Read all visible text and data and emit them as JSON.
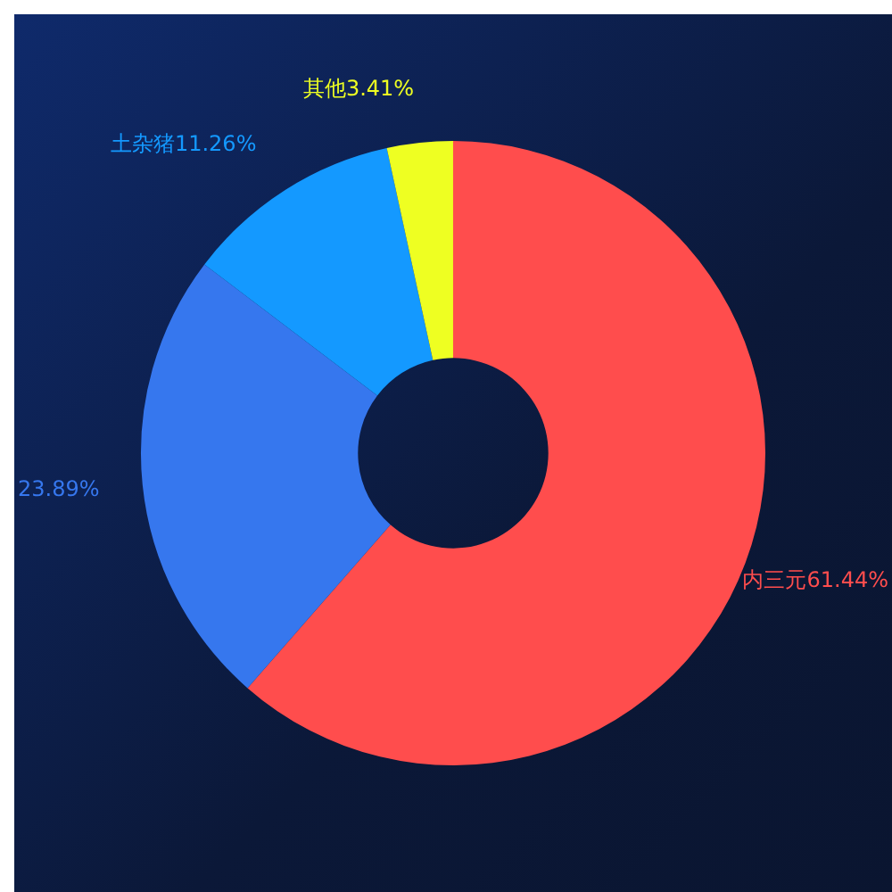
{
  "chart_data": {
    "type": "donut",
    "categories": [
      "内三元",
      null,
      "土杂猪",
      "其他"
    ],
    "values": [
      61.44,
      23.89,
      11.26,
      3.41
    ],
    "colors": [
      "#ff4d4d",
      "#3677ee",
      "#1499ff",
      "#eeff22"
    ],
    "value_labels": [
      "61.44%",
      "23.89%",
      "11.26%",
      "3.41%"
    ],
    "legend": false
  }
}
